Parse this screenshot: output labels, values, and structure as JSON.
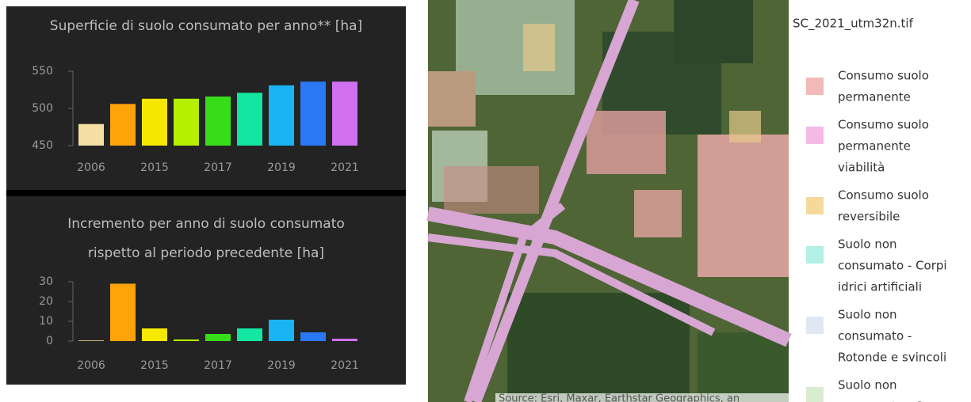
{
  "chart_data": [
    {
      "type": "bar",
      "title": "Superficie di suolo consumato per anno** [ha]",
      "categories": [
        "2006",
        null,
        "2015",
        null,
        "2017",
        null,
        "2019",
        null,
        "2021"
      ],
      "values": [
        479,
        506,
        513,
        513,
        516,
        521,
        531,
        536,
        536
      ],
      "colors": [
        "#f6dfa2",
        "#ffa30a",
        "#f6e800",
        "#b4f000",
        "#38dd1a",
        "#12e6a0",
        "#1ab4f5",
        "#2b78f5",
        "#d070f0"
      ],
      "ylim": [
        450,
        550
      ],
      "yticks": [
        450,
        500,
        550
      ]
    },
    {
      "type": "bar",
      "title": [
        "Incremento per anno di suolo consumato",
        "rispetto al periodo precedente [ha]"
      ],
      "categories": [
        "2006",
        null,
        "2015",
        null,
        "2017",
        null,
        "2019",
        null,
        "2021"
      ],
      "values": [
        0.3,
        29,
        6.4,
        0.8,
        3.6,
        6.4,
        10.8,
        4.4,
        1.2
      ],
      "colors": [
        "#f6dfa2",
        "#ffa30a",
        "#f6e800",
        "#b4f000",
        "#38dd1a",
        "#12e6a0",
        "#1ab4f5",
        "#2b78f5",
        "#d070f0"
      ],
      "ylim": [
        0,
        30
      ],
      "yticks": [
        0,
        10,
        20,
        30
      ]
    }
  ],
  "map": {
    "attribution": "Source: Esri, Maxar, Earthstar Geographics, an"
  },
  "legend": {
    "layer": "SC_2021_utm32n.tif",
    "items": [
      {
        "label": [
          "Consumo suolo",
          "permanente"
        ],
        "color": "#f2b9b9"
      },
      {
        "label": [
          "Consumo suolo",
          "permanente",
          "viabilità"
        ],
        "color": "#f5b9e6"
      },
      {
        "label": [
          "Consumo suolo",
          "reversibile"
        ],
        "color": "#f5d99a"
      },
      {
        "label": [
          "Suolo non",
          "consumato - Corpi",
          "idrici artificiali"
        ],
        "color": "#b2f0e6"
      },
      {
        "label": [
          "Suolo non",
          "consumato -",
          "Rotonde e svincoli"
        ],
        "color": "#dfe8f2"
      },
      {
        "label": [
          "Suolo non",
          "consumato - Serre"
        ],
        "color": "#d8ecd0"
      }
    ]
  }
}
